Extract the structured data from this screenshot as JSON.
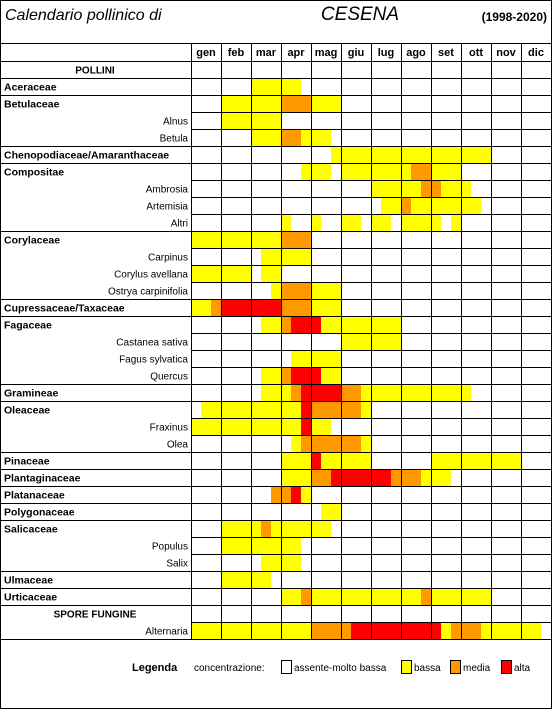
{
  "title": {
    "prefix": "Calendario pollinico di",
    "city": "CESENA",
    "years": "(1998-2020)"
  },
  "months": [
    "gen",
    "feb",
    "mar",
    "apr",
    "mag",
    "giu",
    "lug",
    "ago",
    "set",
    "ott",
    "nov",
    "dic"
  ],
  "legend": {
    "heading": "Legenda",
    "label": "concentrazione:",
    "items": [
      {
        "key": "0",
        "label": "assente-molto bassa"
      },
      {
        "key": "1",
        "label": "bassa"
      },
      {
        "key": "2",
        "label": "media"
      },
      {
        "key": "3",
        "label": "alta"
      }
    ]
  },
  "colors": {
    "0": "#ffffff",
    "1": "#ffff00",
    "2": "#ff9900",
    "3": "#ff0000"
  },
  "chart_data": {
    "type": "heatmap",
    "columns_per_month": 3,
    "level_scale": {
      "0": "assente-molto bassa",
      "1": "bassa",
      "2": "media",
      "3": "alta"
    },
    "rows": [
      {
        "label": "POLLINI",
        "kind": "header"
      },
      {
        "label": "Aceraceae",
        "kind": "family",
        "levels": "000000111110000000000000000000000000"
      },
      {
        "label": "Betulaceae",
        "kind": "family",
        "levels": "000111111222111000000000000000000000"
      },
      {
        "label": "Alnus",
        "kind": "genus",
        "levels": "000111111000000000000000000000000000"
      },
      {
        "label": "Betula",
        "kind": "genus",
        "levels": "000000111221110000000000000000000000"
      },
      {
        "label": "Chenopodiaceae/Amaranthaceae",
        "kind": "family",
        "levels": "000000000000001111111111111111000000"
      },
      {
        "label": "Compositae",
        "kind": "family",
        "levels": "000000000001110111111122111000000000"
      },
      {
        "label": "Ambrosia",
        "kind": "genus",
        "levels": "000000000000000000111112211100000000"
      },
      {
        "label": "Artemisia",
        "kind": "genus",
        "levels": "000000000000000000011211111110000000"
      },
      {
        "label": "Altri",
        "kind": "genus",
        "levels": "000000000100100110110111101000000000"
      },
      {
        "label": "Corylaceae",
        "kind": "family",
        "levels": "111111111222000000000000000000000000"
      },
      {
        "label": "Carpinus",
        "kind": "genus",
        "levels": "000000011111000000000000000000000000"
      },
      {
        "label": "Corylus avellana",
        "kind": "genus",
        "levels": "111111011000000000000000000000000000"
      },
      {
        "label": "Ostrya carpinifolia",
        "kind": "genus",
        "levels": "000000001222111000000000000000000000"
      },
      {
        "label": "Cupressaceae/Taxaceae",
        "kind": "family",
        "levels": "112333333222111000000000000000000000"
      },
      {
        "label": "Fagaceae",
        "kind": "family",
        "levels": "000000011233311111111000000000000000"
      },
      {
        "label": "Castanea sativa",
        "kind": "genus",
        "levels": "000000000000000111111000000000000000"
      },
      {
        "label": "Fagus sylvatica",
        "kind": "genus",
        "levels": "000000000011111000000000000000000000"
      },
      {
        "label": "Quercus",
        "kind": "genus",
        "levels": "000000011233311000000000000000000000"
      },
      {
        "label": "Gramineae",
        "kind": "family",
        "levels": "000000011123333221111111111100000000"
      },
      {
        "label": "Oleaceae",
        "kind": "family",
        "levels": "011111111113222221000000000000000000"
      },
      {
        "label": "Fraxinus",
        "kind": "genus",
        "levels": "111111111113110000000000000000000000"
      },
      {
        "label": "Olea",
        "kind": "genus",
        "levels": "000000000012222221000000000000000000"
      },
      {
        "label": "Pinaceae",
        "kind": "family",
        "levels": "000000000111311111000000111111111000"
      },
      {
        "label": "Plantaginaceae",
        "kind": "family",
        "levels": "000000000111223333332221110000000000"
      },
      {
        "label": "Platanaceae",
        "kind": "family",
        "levels": "000000002231000000000000000000000000"
      },
      {
        "label": "Polygonaceae",
        "kind": "family",
        "levels": "000000000000011000000000000000000000"
      },
      {
        "label": "Salicaceae",
        "kind": "family",
        "levels": "000111121111110000000000000000000000"
      },
      {
        "label": "Populus",
        "kind": "genus",
        "levels": "000111111110000000000000000000000000"
      },
      {
        "label": "Salix",
        "kind": "genus",
        "levels": "000000011110000000000000000000000000"
      },
      {
        "label": "Ulmaceae",
        "kind": "family",
        "levels": "000111110000000000000000000000000000"
      },
      {
        "label": "Urticaceae",
        "kind": "family",
        "levels": "000000000112111111111112111111000000"
      },
      {
        "label": "SPORE FUNGINE",
        "kind": "header"
      },
      {
        "label": "Alternaria",
        "kind": "genus",
        "levels": "111111111111222233333333312221111110"
      }
    ]
  }
}
